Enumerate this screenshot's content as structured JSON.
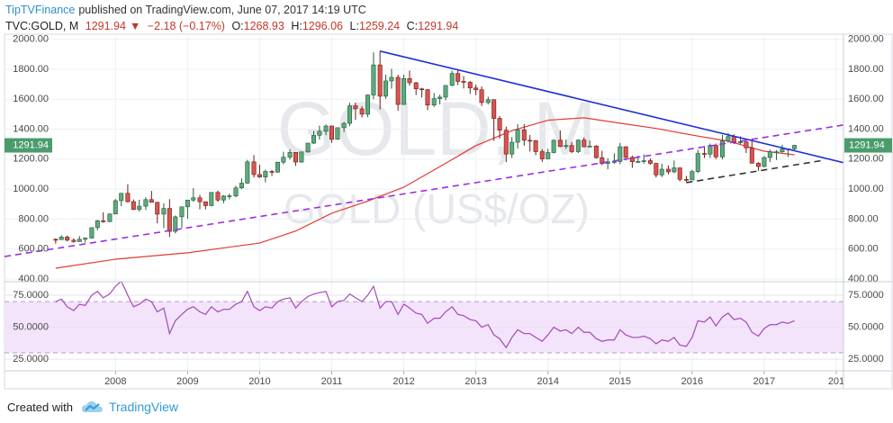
{
  "header": {
    "author": "TipTVFinance",
    "published": "published on TradingView.com, June 07, 2017 14:19 UTC"
  },
  "footer": {
    "created": "Created with",
    "brand": "TradingView"
  },
  "chart_data": [
    {
      "type": "candlestick",
      "symbol": "TVC:GOLD, M",
      "arrow": "▼",
      "change": "−2.18 (−0.17%)",
      "ohlc_labels": [
        "O:",
        "H:",
        "L:",
        "C:"
      ],
      "watermark": "GOLD, M",
      "description": "GOLD (US$/OZ)",
      "up_color": "#5ea97d",
      "down_color": "#d9534f",
      "grid": true,
      "xlim": [
        2006.46,
        2018.1
      ],
      "xticks": [
        2008,
        2009,
        2010,
        2011,
        2012,
        2013,
        2014,
        2015,
        2016,
        2017,
        {
          "value": 2018,
          "label": "201"
        }
      ],
      "ylim": [
        382,
        2034
      ],
      "yticks": [
        {
          "value": 400,
          "label": "400.00"
        },
        {
          "value": 600,
          "label": "600.00"
        },
        {
          "value": 800,
          "label": "800.00"
        },
        {
          "value": 1000,
          "label": "1000.00"
        },
        {
          "value": 1200,
          "label": "1200.00"
        },
        {
          "value": 1400,
          "label": "1400.00"
        },
        {
          "value": 1600,
          "label": "1600.00"
        },
        {
          "value": 1800,
          "label": "1800.00"
        },
        {
          "value": 2000,
          "label": "2000.00"
        }
      ],
      "x": [
        2007.17,
        2007.25,
        2007.33,
        2007.42,
        2007.5,
        2007.58,
        2007.67,
        2007.75,
        2007.83,
        2007.92,
        2008,
        2008.08,
        2008.17,
        2008.25,
        2008.33,
        2008.42,
        2008.5,
        2008.58,
        2008.67,
        2008.75,
        2008.83,
        2008.92,
        2009,
        2009.08,
        2009.17,
        2009.25,
        2009.33,
        2009.42,
        2009.5,
        2009.58,
        2009.67,
        2009.75,
        2009.83,
        2009.92,
        2010,
        2010.08,
        2010.17,
        2010.25,
        2010.33,
        2010.42,
        2010.5,
        2010.58,
        2010.67,
        2010.75,
        2010.83,
        2010.92,
        2011,
        2011.08,
        2011.17,
        2011.25,
        2011.33,
        2011.42,
        2011.5,
        2011.58,
        2011.67,
        2011.75,
        2011.83,
        2011.92,
        2012,
        2012.08,
        2012.17,
        2012.25,
        2012.33,
        2012.42,
        2012.5,
        2012.58,
        2012.67,
        2012.75,
        2012.83,
        2012.92,
        2013,
        2013.08,
        2013.17,
        2013.25,
        2013.33,
        2013.42,
        2013.5,
        2013.58,
        2013.67,
        2013.75,
        2013.83,
        2013.92,
        2014,
        2014.08,
        2014.17,
        2014.25,
        2014.33,
        2014.42,
        2014.5,
        2014.58,
        2014.67,
        2014.75,
        2014.83,
        2014.92,
        2015,
        2015.08,
        2015.17,
        2015.25,
        2015.33,
        2015.42,
        2015.5,
        2015.58,
        2015.67,
        2015.75,
        2015.83,
        2015.92,
        2016,
        2016.08,
        2016.17,
        2016.25,
        2016.33,
        2016.42,
        2016.5,
        2016.58,
        2016.67,
        2016.75,
        2016.83,
        2016.92,
        2017,
        2017.08,
        2017.17,
        2017.25,
        2017.33,
        2017.42
      ],
      "ohlc": [
        [
          665,
          672,
          636,
          663
        ],
        [
          663,
          692,
          660,
          680
        ],
        [
          680,
          690,
          651,
          659
        ],
        [
          659,
          672,
          642,
          650
        ],
        [
          650,
          687,
          648,
          665
        ],
        [
          665,
          677,
          642,
          673
        ],
        [
          673,
          745,
          670,
          743
        ],
        [
          743,
          795,
          725,
          789
        ],
        [
          789,
          845,
          775,
          783
        ],
        [
          783,
          838,
          780,
          834
        ],
        [
          834,
          934,
          832,
          923
        ],
        [
          923,
          975,
          885,
          972
        ],
        [
          972,
          1032,
          911,
          916
        ],
        [
          916,
          931,
          860,
          864
        ],
        [
          864,
          929,
          850,
          886
        ],
        [
          886,
          945,
          860,
          930
        ],
        [
          930,
          988,
          910,
          912
        ],
        [
          912,
          915,
          772,
          833
        ],
        [
          833,
          905,
          740,
          871
        ],
        [
          871,
          933,
          681,
          718
        ],
        [
          718,
          824,
          705,
          815
        ],
        [
          815,
          882,
          740,
          882
        ],
        [
          882,
          928,
          802,
          927
        ],
        [
          927,
          1006,
          915,
          942
        ],
        [
          942,
          962,
          865,
          916
        ],
        [
          916,
          916,
          865,
          890
        ],
        [
          890,
          980,
          885,
          978
        ],
        [
          978,
          990,
          915,
          927
        ],
        [
          927,
          960,
          905,
          954
        ],
        [
          954,
          970,
          931,
          955
        ],
        [
          955,
          1023,
          945,
          1008
        ],
        [
          1008,
          1072,
          1000,
          1040
        ],
        [
          1040,
          1195,
          1035,
          1182
        ],
        [
          1182,
          1227,
          1077,
          1097
        ],
        [
          1097,
          1162,
          1075,
          1081
        ],
        [
          1081,
          1130,
          1045,
          1118
        ],
        [
          1118,
          1127,
          1087,
          1113
        ],
        [
          1113,
          1181,
          1110,
          1180
        ],
        [
          1180,
          1249,
          1165,
          1213
        ],
        [
          1213,
          1266,
          1197,
          1245
        ],
        [
          1245,
          1247,
          1155,
          1181
        ],
        [
          1181,
          1251,
          1175,
          1248
        ],
        [
          1248,
          1308,
          1243,
          1307
        ],
        [
          1307,
          1388,
          1300,
          1359
        ],
        [
          1359,
          1424,
          1330,
          1386
        ],
        [
          1386,
          1432,
          1360,
          1421
        ],
        [
          1421,
          1424,
          1309,
          1332
        ],
        [
          1332,
          1412,
          1330,
          1410
        ],
        [
          1410,
          1448,
          1381,
          1439
        ],
        [
          1439,
          1576,
          1420,
          1556
        ],
        [
          1556,
          1577,
          1462,
          1536
        ],
        [
          1536,
          1553,
          1478,
          1500
        ],
        [
          1500,
          1632,
          1480,
          1628
        ],
        [
          1628,
          1913,
          1600,
          1829
        ],
        [
          1829,
          1921,
          1532,
          1620
        ],
        [
          1620,
          1764,
          1603,
          1722
        ],
        [
          1722,
          1803,
          1670,
          1746
        ],
        [
          1746,
          1764,
          1523,
          1565
        ],
        [
          1565,
          1763,
          1562,
          1738
        ],
        [
          1738,
          1791,
          1690,
          1710
        ],
        [
          1710,
          1715,
          1628,
          1669
        ],
        [
          1669,
          1676,
          1612,
          1664
        ],
        [
          1664,
          1668,
          1527,
          1561
        ],
        [
          1561,
          1641,
          1547,
          1604
        ],
        [
          1604,
          1630,
          1565,
          1614
        ],
        [
          1614,
          1692,
          1592,
          1692
        ],
        [
          1692,
          1790,
          1687,
          1772
        ],
        [
          1772,
          1796,
          1695,
          1719
        ],
        [
          1719,
          1755,
          1672,
          1713
        ],
        [
          1713,
          1723,
          1636,
          1675
        ],
        [
          1675,
          1697,
          1627,
          1663
        ],
        [
          1663,
          1685,
          1555,
          1578
        ],
        [
          1578,
          1617,
          1565,
          1597
        ],
        [
          1597,
          1598,
          1322,
          1472
        ],
        [
          1472,
          1487,
          1338,
          1393
        ],
        [
          1393,
          1417,
          1180,
          1234
        ],
        [
          1234,
          1348,
          1208,
          1313
        ],
        [
          1313,
          1434,
          1270,
          1396
        ],
        [
          1396,
          1434,
          1290,
          1326
        ],
        [
          1326,
          1361,
          1251,
          1324
        ],
        [
          1324,
          1327,
          1227,
          1250
        ],
        [
          1250,
          1267,
          1182,
          1202
        ],
        [
          1202,
          1269,
          1200,
          1244
        ],
        [
          1244,
          1332,
          1238,
          1326
        ],
        [
          1326,
          1392,
          1280,
          1284
        ],
        [
          1284,
          1331,
          1268,
          1291
        ],
        [
          1291,
          1315,
          1240,
          1250
        ],
        [
          1250,
          1332,
          1241,
          1327
        ],
        [
          1327,
          1345,
          1281,
          1282
        ],
        [
          1282,
          1325,
          1281,
          1287
        ],
        [
          1287,
          1293,
          1204,
          1210
        ],
        [
          1210,
          1256,
          1160,
          1171
        ],
        [
          1171,
          1207,
          1132,
          1183
        ],
        [
          1183,
          1239,
          1167,
          1184
        ],
        [
          1184,
          1308,
          1167,
          1283
        ],
        [
          1283,
          1284,
          1191,
          1212
        ],
        [
          1212,
          1224,
          1142,
          1183
        ],
        [
          1183,
          1224,
          1175,
          1184
        ],
        [
          1184,
          1232,
          1170,
          1190
        ],
        [
          1190,
          1205,
          1162,
          1172
        ],
        [
          1172,
          1174,
          1077,
          1095
        ],
        [
          1095,
          1170,
          1080,
          1133
        ],
        [
          1133,
          1157,
          1098,
          1115
        ],
        [
          1115,
          1191,
          1106,
          1142
        ],
        [
          1142,
          1142,
          1052,
          1065
        ],
        [
          1065,
          1088,
          1046,
          1061
        ],
        [
          1061,
          1128,
          1061,
          1117
        ],
        [
          1117,
          1263,
          1107,
          1238
        ],
        [
          1238,
          1287,
          1208,
          1233
        ],
        [
          1233,
          1304,
          1208,
          1292
        ],
        [
          1292,
          1304,
          1200,
          1215
        ],
        [
          1215,
          1362,
          1199,
          1321
        ],
        [
          1321,
          1375,
          1310,
          1351
        ],
        [
          1351,
          1366,
          1301,
          1309
        ],
        [
          1309,
          1352,
          1301,
          1316
        ],
        [
          1316,
          1318,
          1241,
          1275
        ],
        [
          1275,
          1338,
          1171,
          1173
        ],
        [
          1173,
          1180,
          1122,
          1151
        ],
        [
          1151,
          1220,
          1146,
          1211
        ],
        [
          1211,
          1264,
          1180,
          1249
        ],
        [
          1249,
          1261,
          1194,
          1249
        ],
        [
          1249,
          1296,
          1243,
          1268
        ],
        [
          1268,
          1270,
          1214,
          1268.93
        ],
        [
          1268.93,
          1296.06,
          1259.24,
          1291.94
        ]
      ],
      "ma": {
        "color": "#e53935",
        "x": [
          2007.17,
          2008,
          2009,
          2010,
          2010.5,
          2011,
          2011.5,
          2012,
          2012.5,
          2013,
          2013.5,
          2014,
          2014.5,
          2015,
          2015.5,
          2016,
          2016.5,
          2017,
          2017.42
        ],
        "values": [
          472,
          532,
          575,
          640,
          720,
          839,
          920,
          1013,
          1150,
          1290,
          1390,
          1460,
          1476,
          1440,
          1405,
          1361,
          1320,
          1253,
          1229
        ]
      },
      "trendlines": [
        {
          "color": "#1f2fd6",
          "dash": false,
          "x": [
            2011.67,
            2018.1
          ],
          "y": [
            1921,
            1177
          ]
        },
        {
          "color": "#9b30e0",
          "dash": true,
          "x": [
            2006.46,
            2018.1
          ],
          "y": [
            550,
            1428
          ]
        },
        {
          "color": "#333333",
          "dash": true,
          "x": [
            2015.92,
            2017.83
          ],
          "y": [
            1043,
            1193
          ]
        }
      ],
      "badge_color": "#4a9c6d"
    },
    {
      "type": "line",
      "color": "#a24bb5",
      "band": [
        30,
        70
      ],
      "band_color": "#f3e3fb",
      "ylim": [
        15.9,
        85.6
      ],
      "yticks": [
        {
          "value": 25,
          "label": "25.0000"
        },
        {
          "value": 50,
          "label": "50.0000"
        },
        {
          "value": 75,
          "label": "75.0000"
        }
      ],
      "values": [
        70,
        72,
        66,
        63,
        68,
        67,
        75,
        78,
        73,
        76,
        82,
        86,
        75,
        66,
        68,
        72,
        70,
        62,
        65,
        45,
        55,
        60,
        64,
        66,
        62,
        60,
        66,
        62,
        64,
        64,
        68,
        70,
        78,
        66,
        63,
        66,
        65,
        70,
        72,
        73,
        65,
        70,
        74,
        76,
        77,
        78,
        66,
        70,
        71,
        76,
        73,
        70,
        75,
        82,
        65,
        70,
        70,
        60,
        68,
        65,
        61,
        60,
        53,
        57,
        57,
        62,
        66,
        60,
        59,
        56,
        55,
        50,
        52,
        44,
        41,
        34,
        42,
        48,
        45,
        45,
        42,
        39,
        44,
        50,
        47,
        48,
        45,
        50,
        46,
        46,
        41,
        39,
        40,
        40,
        48,
        44,
        42,
        42,
        43,
        41,
        37,
        40,
        39,
        42,
        36,
        35,
        42,
        55,
        54,
        58,
        51,
        58,
        61,
        56,
        57,
        54,
        46,
        43,
        49,
        52,
        52,
        54,
        53,
        55
      ]
    }
  ]
}
